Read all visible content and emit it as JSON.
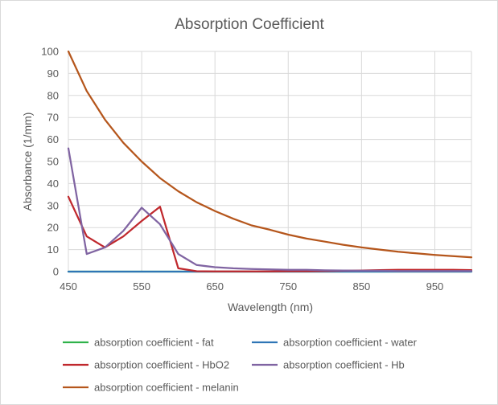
{
  "chart_data": {
    "type": "line",
    "title": "Absorption Coefficient",
    "xlabel": "Wavelength (nm)",
    "ylabel": "Absorbance (1/mm)",
    "xlim": [
      450,
      1000
    ],
    "ylim": [
      0,
      100
    ],
    "xticks": [
      450,
      550,
      650,
      750,
      850,
      950
    ],
    "yticks": [
      0,
      10,
      20,
      30,
      40,
      50,
      60,
      70,
      80,
      90,
      100
    ],
    "grid": true,
    "legend_position": "bottom",
    "series": [
      {
        "name": "absorption coefficient - fat",
        "color": "#2fb24a",
        "x": [
          450,
          475,
          500,
          525,
          550,
          575,
          600,
          625,
          650,
          675,
          700,
          725,
          750,
          775,
          800,
          825,
          850,
          875,
          900,
          925,
          950,
          975,
          1000
        ],
        "y": [
          0,
          0,
          0,
          0,
          0,
          0,
          0,
          0,
          0,
          0,
          0,
          0,
          0,
          0,
          0,
          0,
          0,
          0,
          0,
          0,
          0,
          0,
          0
        ]
      },
      {
        "name": "absorption coefficient - water",
        "color": "#2e75b6",
        "x": [
          450,
          475,
          500,
          525,
          550,
          575,
          600,
          625,
          650,
          675,
          700,
          725,
          750,
          775,
          800,
          825,
          850,
          875,
          900,
          925,
          950,
          975,
          1000
        ],
        "y": [
          0,
          0,
          0,
          0,
          0,
          0,
          0,
          0,
          0,
          0,
          0,
          0,
          0,
          0,
          0,
          0,
          0,
          0,
          0,
          0,
          0,
          0,
          0
        ]
      },
      {
        "name": "absorption coefficient - HbO2",
        "color": "#c0282d",
        "x": [
          450,
          475,
          500,
          525,
          550,
          575,
          600,
          625,
          650,
          675,
          700,
          725,
          750,
          775,
          800,
          825,
          850,
          875,
          900,
          925,
          950,
          975,
          1000
        ],
        "y": [
          34,
          16,
          11,
          16,
          23,
          29.5,
          1.5,
          0.2,
          0.1,
          0.1,
          0.1,
          0.1,
          0.2,
          0.2,
          0.3,
          0.4,
          0.5,
          0.7,
          0.8,
          0.8,
          0.8,
          0.8,
          0.7
        ]
      },
      {
        "name": "absorption coefficient - Hb",
        "color": "#8064a2",
        "x": [
          450,
          475,
          500,
          525,
          550,
          575,
          600,
          625,
          650,
          675,
          700,
          725,
          750,
          775,
          800,
          825,
          850,
          875,
          900,
          925,
          950,
          975,
          1000
        ],
        "y": [
          56,
          8,
          11,
          18.5,
          29,
          21.5,
          8,
          3,
          2,
          1.5,
          1.2,
          1,
          0.8,
          0.8,
          0.6,
          0.5,
          0.4,
          0.4,
          0.3,
          0.3,
          0.3,
          0.3,
          0.3
        ]
      },
      {
        "name": "absorption coefficient - melanin",
        "color": "#b5561c",
        "x": [
          450,
          475,
          500,
          525,
          550,
          575,
          600,
          625,
          650,
          675,
          700,
          725,
          750,
          775,
          800,
          825,
          850,
          875,
          900,
          925,
          950,
          975,
          1000
        ],
        "y": [
          100,
          82,
          69,
          58.5,
          50,
          42.5,
          36.5,
          31.5,
          27.5,
          24,
          21,
          19,
          16.8,
          15,
          13.6,
          12.2,
          11,
          10,
          9,
          8.3,
          7.6,
          7,
          6.5
        ]
      }
    ]
  }
}
